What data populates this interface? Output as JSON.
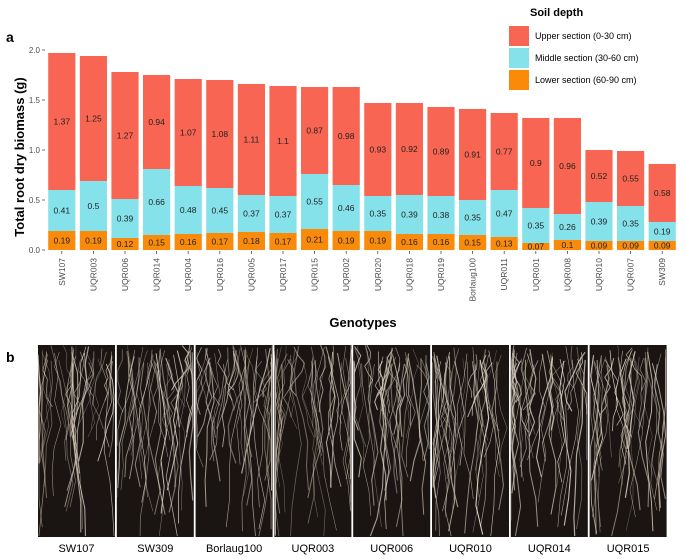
{
  "chart_data": {
    "type": "bar",
    "stacked": true,
    "panel_label": "a",
    "xlabel": "Genotypes",
    "ylabel": "Total root dry biomass (g)",
    "ylim": [
      0,
      2.0
    ],
    "yticks": [
      "0.0",
      "0.5",
      "1.0",
      "1.5",
      "2.0"
    ],
    "categories": [
      "SW107",
      "UQR003",
      "UQR006",
      "UQR014",
      "UQR004",
      "UQR016",
      "UQR005",
      "UQR017",
      "UQR015",
      "UQR002",
      "UQR020",
      "UQR018",
      "UQR019",
      "Borlaug100",
      "UQR011",
      "UQR001",
      "UQR008",
      "UQR010",
      "UQR007",
      "SW309"
    ],
    "series": [
      {
        "name": "Lower section (60-90 cm)",
        "color": "#f98a0a",
        "values": [
          0.19,
          0.19,
          0.12,
          0.15,
          0.16,
          0.17,
          0.18,
          0.17,
          0.21,
          0.19,
          0.19,
          0.16,
          0.16,
          0.15,
          0.13,
          0.07,
          0.1,
          0.09,
          0.09,
          0.09
        ]
      },
      {
        "name": "Middle section (30-60 cm)",
        "color": "#86e2ea",
        "values": [
          0.41,
          0.5,
          0.39,
          0.66,
          0.48,
          0.45,
          0.37,
          0.37,
          0.55,
          0.46,
          0.35,
          0.39,
          0.38,
          0.35,
          0.47,
          0.35,
          0.26,
          0.39,
          0.35,
          0.19
        ]
      },
      {
        "name": "Upper section (0-30 cm)",
        "color": "#f86552",
        "values": [
          1.37,
          1.25,
          1.27,
          0.94,
          1.07,
          1.08,
          1.11,
          1.1,
          0.87,
          0.98,
          0.93,
          0.92,
          0.89,
          0.91,
          0.77,
          0.9,
          0.96,
          0.52,
          0.55,
          0.58
        ]
      }
    ],
    "legend_title": "Soil depth",
    "legend_position": "top-right",
    "grid": false
  },
  "photo_panel": {
    "panel_label": "b",
    "labels": [
      "SW107",
      "SW309",
      "Borlaug100",
      "UQR003",
      "UQR006",
      "UQR010",
      "UQR014",
      "UQR015"
    ]
  }
}
